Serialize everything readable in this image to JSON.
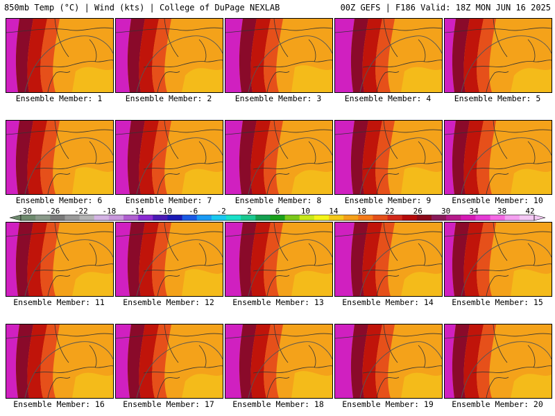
{
  "header": {
    "left_title": "850mb Temp (°C) | Wind (kts) | College of DuPage NEXLAB",
    "right_title": "00Z GEFS | F186 Valid: 18Z MON JUN 16 2025"
  },
  "panels": [
    {
      "caption": "Ensemble Member: 1"
    },
    {
      "caption": "Ensemble Member: 2"
    },
    {
      "caption": "Ensemble Member: 3"
    },
    {
      "caption": "Ensemble Member: 4"
    },
    {
      "caption": "Ensemble Member: 5"
    },
    {
      "caption": "Ensemble Member: 6"
    },
    {
      "caption": "Ensemble Member: 7"
    },
    {
      "caption": "Ensemble Member: 8"
    },
    {
      "caption": "Ensemble Member: 9"
    },
    {
      "caption": "Ensemble Member: 10"
    },
    {
      "caption": "Ensemble Member: 11"
    },
    {
      "caption": "Ensemble Member: 12"
    },
    {
      "caption": "Ensemble Member: 13"
    },
    {
      "caption": "Ensemble Member: 14"
    },
    {
      "caption": "Ensemble Member: 15"
    },
    {
      "caption": "Ensemble Member: 16"
    },
    {
      "caption": "Ensemble Member: 17"
    },
    {
      "caption": "Ensemble Member: 18"
    },
    {
      "caption": "Ensemble Member: 19"
    },
    {
      "caption": "Ensemble Member: 20"
    }
  ],
  "colorbar": {
    "labels": [
      "-30",
      "-26",
      "-22",
      "-18",
      "-14",
      "-10",
      "-6",
      "-2",
      "2",
      "6",
      "10",
      "14",
      "18",
      "22",
      "26",
      "30",
      "34",
      "38",
      "42"
    ],
    "colors": [
      "#6e8a6e",
      "#8a9a8a",
      "#7a7a7a",
      "#9a9a9a",
      "#b4b4b4",
      "#d4b4e4",
      "#c898dc",
      "#b060d0",
      "#8a2ad0",
      "#4a1ab4",
      "#1a1ab4",
      "#1a5ae4",
      "#1a9af4",
      "#1ac8f0",
      "#1ae0c8",
      "#1ac890",
      "#14a050",
      "#1aa01a",
      "#7ac81a",
      "#c8e81a",
      "#f4f41a",
      "#f4c81a",
      "#f4a01a",
      "#f47a1a",
      "#e4501a",
      "#d0281a",
      "#b40a0a",
      "#8a0a1a",
      "#8a1a5a",
      "#b41a8a",
      "#d41ab4",
      "#e43ad4",
      "#f46ae4",
      "#f4a0f0",
      "#f4c8f4"
    ]
  }
}
